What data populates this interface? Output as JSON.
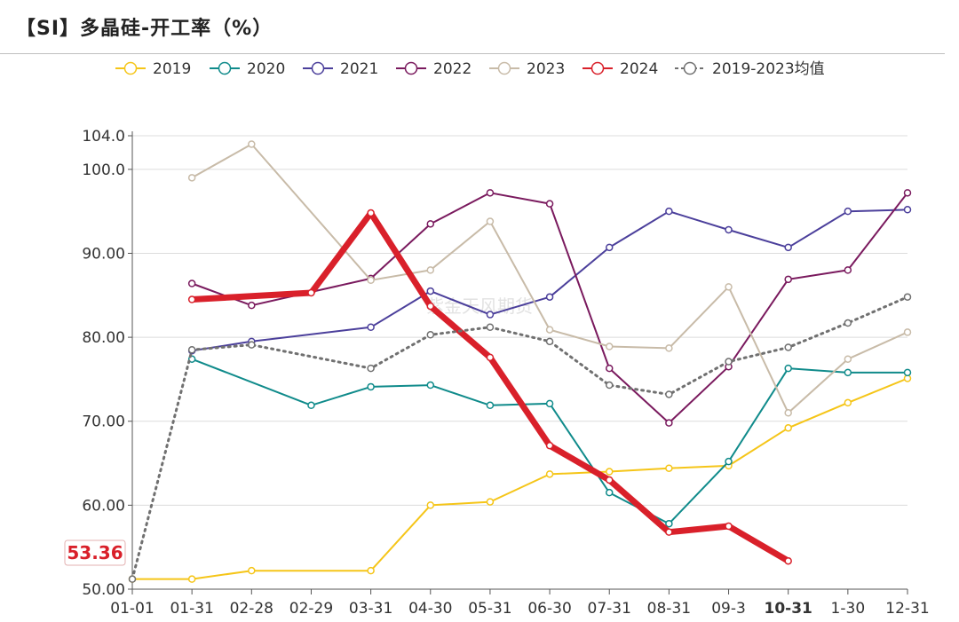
{
  "title": "【SI】多晶硅-开工率（%）",
  "watermark": "紫金天风期货",
  "chart_data": {
    "type": "line",
    "title": "【SI】多晶硅-开工率（%）",
    "categories": [
      "01-01",
      "01-31",
      "02-28",
      "02-29",
      "03-31",
      "04-30",
      "05-31",
      "06-30",
      "07-31",
      "08-31",
      "09-3",
      "10-31",
      "1-30",
      "12-31"
    ],
    "y_ticks": [
      "104.0",
      "100.0",
      "90.00",
      "80.00",
      "70.00",
      "60.00",
      "50.00"
    ],
    "ylim": [
      50,
      104
    ],
    "grid": true,
    "legend_position": "top",
    "highlight_category": "10-31",
    "highlight_value_label": "53.36",
    "series": [
      {
        "name": "2019",
        "color": "#f5c518",
        "width": 2,
        "values": [
          51.2,
          51.2,
          52.2,
          null,
          52.2,
          60.0,
          60.4,
          63.7,
          64.0,
          64.4,
          64.7,
          69.2,
          72.2,
          75.1
        ]
      },
      {
        "name": "2020",
        "color": "#108b8b",
        "width": 2,
        "values": [
          null,
          77.4,
          null,
          71.9,
          74.1,
          74.3,
          71.9,
          72.1,
          61.5,
          57.8,
          65.2,
          76.3,
          75.8,
          75.8
        ]
      },
      {
        "name": "2021",
        "color": "#4b3f9b",
        "width": 2,
        "values": [
          null,
          78.4,
          79.5,
          null,
          81.2,
          85.5,
          82.7,
          84.8,
          90.7,
          95.0,
          92.8,
          90.7,
          95.0,
          95.2
        ]
      },
      {
        "name": "2022",
        "color": "#7a1a5e",
        "width": 2,
        "values": [
          null,
          86.4,
          83.8,
          null,
          87.0,
          93.5,
          97.2,
          95.9,
          76.3,
          69.8,
          76.5,
          86.9,
          88.0,
          97.2
        ]
      },
      {
        "name": "2023",
        "color": "#c8bba8",
        "width": 2,
        "values": [
          null,
          99.0,
          103.0,
          null,
          86.8,
          88.0,
          93.8,
          80.9,
          78.9,
          78.7,
          86.0,
          71.0,
          77.4,
          80.6
        ]
      },
      {
        "name": "2024",
        "color": "#d9202a",
        "width": 7,
        "values": [
          null,
          84.5,
          null,
          85.3,
          94.8,
          83.7,
          77.6,
          67.1,
          63.0,
          56.8,
          57.5,
          53.36,
          null,
          null
        ]
      },
      {
        "name": "2019-2023均值",
        "color": "#707070",
        "width": 3,
        "dashed": true,
        "values": [
          51.2,
          78.5,
          79.1,
          null,
          76.3,
          80.3,
          81.2,
          79.5,
          74.3,
          73.2,
          77.1,
          78.8,
          81.7,
          84.8
        ]
      }
    ]
  }
}
